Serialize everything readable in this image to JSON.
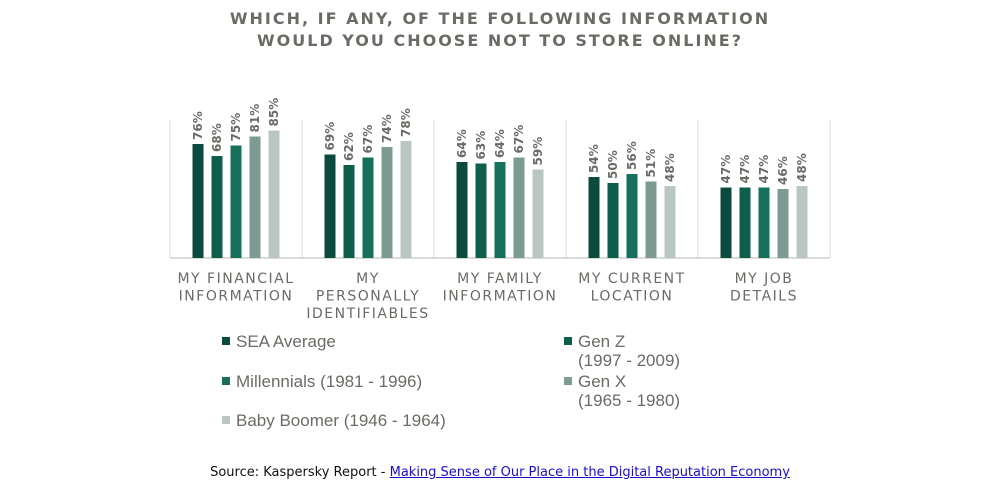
{
  "chart_data": {
    "type": "bar",
    "title": [
      "WHICH, IF ANY, OF THE FOLLOWING INFORMATION",
      "WOULD YOU CHOOSE NOT TO STORE ONLINE?"
    ],
    "categories": [
      [
        "MY FINANCIAL",
        "INFORMATION"
      ],
      [
        "MY",
        "PERSONALLY",
        "IDENTIFIABLES"
      ],
      [
        "MY FAMILY",
        "INFORMATION"
      ],
      [
        "MY CURRENT",
        "LOCATION"
      ],
      [
        "MY JOB",
        "DETAILS"
      ]
    ],
    "series": [
      {
        "name": "SEA Average",
        "color": "#0b4a3d",
        "values": [
          76,
          69,
          64,
          54,
          47
        ]
      },
      {
        "name": "Gen Z (1997 - 2009)",
        "color": "#0e5e4c",
        "values": [
          68,
          62,
          63,
          50,
          47
        ]
      },
      {
        "name": "Millennials (1981 - 1996)",
        "color": "#17705c",
        "values": [
          75,
          67,
          64,
          56,
          47
        ]
      },
      {
        "name": "Gen X (1965 - 1980)",
        "color": "#7d9b93",
        "values": [
          81,
          74,
          67,
          51,
          46
        ]
      },
      {
        "name": "Baby Boomer (1946 - 1964)",
        "color": "#b9c6c2",
        "values": [
          85,
          78,
          59,
          48,
          48
        ]
      }
    ],
    "value_suffix": "%",
    "ylim": [
      0,
      100
    ],
    "grid": "vertical separators",
    "legend_position": "bottom"
  },
  "legend": {
    "items": [
      {
        "lines": [
          "SEA Average"
        ],
        "color": "#0b4a3d"
      },
      {
        "lines": [
          "Gen Z",
          "(1997 - 2009)"
        ],
        "color": "#0e5e4c"
      },
      {
        "lines": [
          "Millennials (1981 - 1996)"
        ],
        "color": "#17705c"
      },
      {
        "lines": [
          "Gen X",
          "(1965 - 1980)"
        ],
        "color": "#7d9b93"
      },
      {
        "lines": [
          "Baby Boomer (1946 - 1964)"
        ],
        "color": "#b9c6c2"
      }
    ]
  },
  "source": {
    "prefix": "Source: Kaspersky Report - ",
    "link_text": "Making Sense of Our Place in the Digital Reputation Economy"
  }
}
